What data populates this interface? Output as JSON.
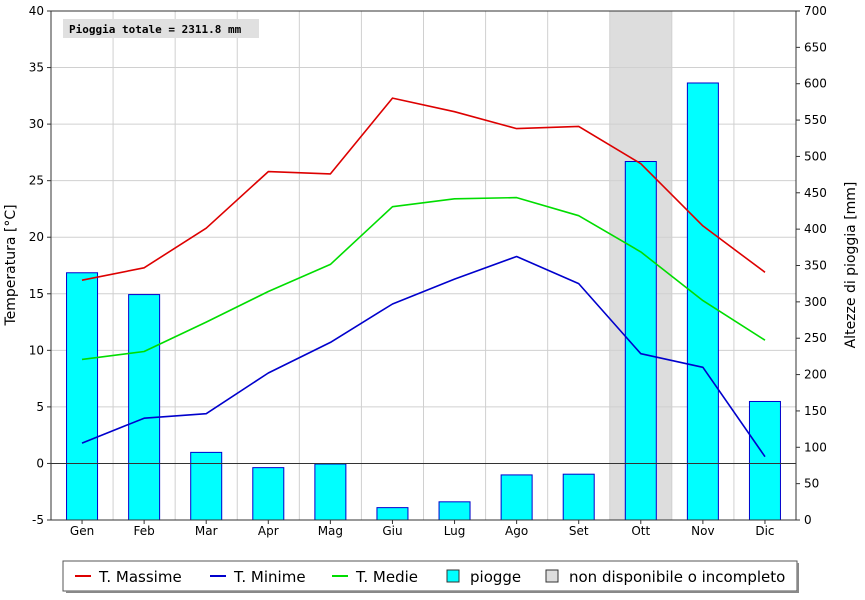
{
  "chart_data": {
    "type": "bar+line",
    "categories": [
      "Gen",
      "Feb",
      "Mar",
      "Apr",
      "Mag",
      "Giu",
      "Lug",
      "Ago",
      "Set",
      "Ott",
      "Nov",
      "Dic"
    ],
    "annotation": "Pioggia totale = 2311.8 mm",
    "ylabel_left": "Temperatura [°C]",
    "ylabel_right": "Altezze di pioggia [mm]",
    "ylim_left": [
      -5,
      40
    ],
    "ylim_right": [
      0,
      700
    ],
    "yticks_left": [
      "-5",
      "0",
      "5",
      "10",
      "15",
      "20",
      "25",
      "30",
      "35",
      "40"
    ],
    "yticks_right": [
      "0",
      "50",
      "100",
      "150",
      "200",
      "250",
      "300",
      "350",
      "400",
      "450",
      "500",
      "550",
      "600",
      "650",
      "700"
    ],
    "grid": true,
    "incomplete_months": [
      "Ott"
    ],
    "bars": {
      "name": "piogge",
      "axis": "right",
      "color": "#00ffff",
      "edge_color": "#0000cc",
      "values": [
        340,
        310,
        93,
        72,
        77,
        17,
        25,
        62,
        63,
        493,
        601,
        163
      ]
    },
    "series": [
      {
        "name": "T. Massime",
        "color": "#dd0000",
        "values": [
          16.2,
          17.3,
          20.8,
          25.8,
          25.6,
          32.3,
          31.1,
          29.6,
          29.8,
          26.5,
          21.0,
          16.9
        ]
      },
      {
        "name": "T. Minime",
        "color": "#0000cc",
        "values": [
          1.8,
          4.0,
          4.4,
          8.0,
          10.7,
          14.1,
          16.3,
          18.3,
          15.9,
          9.7,
          8.5,
          0.6
        ]
      },
      {
        "name": "T. Medie",
        "color": "#00dd00",
        "values": [
          9.2,
          9.9,
          12.5,
          15.2,
          17.6,
          22.7,
          23.4,
          23.5,
          21.9,
          18.7,
          14.4,
          10.9
        ]
      }
    ],
    "legend": {
      "position": "bottom",
      "items": [
        {
          "label": "T. Massime",
          "kind": "line",
          "color": "#dd0000"
        },
        {
          "label": "T. Minime",
          "kind": "line",
          "color": "#0000cc"
        },
        {
          "label": "T. Medie",
          "kind": "line",
          "color": "#00dd00"
        },
        {
          "label": "piogge",
          "kind": "box",
          "color": "#00ffff"
        },
        {
          "label": "non disponibile o incompleto",
          "kind": "box",
          "color": "#dddddd"
        }
      ]
    }
  }
}
